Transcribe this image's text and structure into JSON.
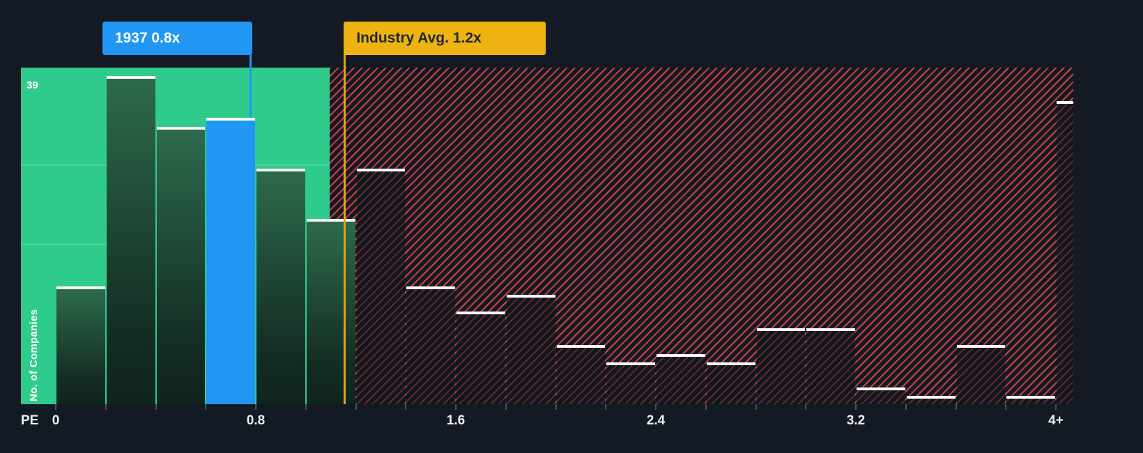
{
  "colors": {
    "background": "#131a23",
    "undervalued_zone_green": "#2ecb8c",
    "overvalued_hatch_red": "#f34949",
    "company_bar_blue": "#2196f3",
    "industry_marker_amber": "#eeb211",
    "bar_top_cap_white": "#ffffff",
    "axis_text": "#eef2f5"
  },
  "chart_data": {
    "type": "bar",
    "title": "",
    "xlabel": "PE",
    "ylabel": "No. of Companies",
    "y_axis_max_label": "39",
    "y_max": 40,
    "grid": "partial-horizontal-in-green-zone",
    "legend": "none",
    "x_tick_labels": [
      {
        "label": "0",
        "pe": 0.0
      },
      {
        "label": "0.8",
        "pe": 0.8
      },
      {
        "label": "1.6",
        "pe": 1.6
      },
      {
        "label": "2.4",
        "pe": 2.4
      },
      {
        "label": "3.2",
        "pe": 3.2
      },
      {
        "label": "4+",
        "pe": 4.0
      }
    ],
    "bin_width_pe": 0.2,
    "bars": [
      {
        "pe_from": 0.0,
        "pe_to": 0.2,
        "count": 14,
        "zone": "undervalued"
      },
      {
        "pe_from": 0.2,
        "pe_to": 0.4,
        "count": 39,
        "zone": "undervalued"
      },
      {
        "pe_from": 0.4,
        "pe_to": 0.6,
        "count": 33,
        "zone": "undervalued"
      },
      {
        "pe_from": 0.6,
        "pe_to": 0.8,
        "count": 34,
        "zone": "company"
      },
      {
        "pe_from": 0.8,
        "pe_to": 1.0,
        "count": 28,
        "zone": "undervalued"
      },
      {
        "pe_from": 1.0,
        "pe_to": 1.2,
        "count": 22,
        "zone": "undervalued"
      },
      {
        "pe_from": 1.2,
        "pe_to": 1.4,
        "count": 28,
        "zone": "overvalued"
      },
      {
        "pe_from": 1.4,
        "pe_to": 1.6,
        "count": 14,
        "zone": "overvalued"
      },
      {
        "pe_from": 1.6,
        "pe_to": 1.8,
        "count": 11,
        "zone": "overvalued"
      },
      {
        "pe_from": 1.8,
        "pe_to": 2.0,
        "count": 13,
        "zone": "overvalued"
      },
      {
        "pe_from": 2.0,
        "pe_to": 2.2,
        "count": 7,
        "zone": "overvalued"
      },
      {
        "pe_from": 2.2,
        "pe_to": 2.4,
        "count": 5,
        "zone": "overvalued"
      },
      {
        "pe_from": 2.4,
        "pe_to": 2.6,
        "count": 6,
        "zone": "overvalued"
      },
      {
        "pe_from": 2.6,
        "pe_to": 2.8,
        "count": 5,
        "zone": "overvalued"
      },
      {
        "pe_from": 2.8,
        "pe_to": 3.0,
        "count": 9,
        "zone": "overvalued"
      },
      {
        "pe_from": 3.0,
        "pe_to": 3.2,
        "count": 9,
        "zone": "overvalued"
      },
      {
        "pe_from": 3.2,
        "pe_to": 3.4,
        "count": 2,
        "zone": "overvalued"
      },
      {
        "pe_from": 3.4,
        "pe_to": 3.6,
        "count": 1,
        "zone": "overvalued"
      },
      {
        "pe_from": 3.6,
        "pe_to": 3.8,
        "count": 7,
        "zone": "overvalued"
      },
      {
        "pe_from": 3.8,
        "pe_to": 4.0,
        "count": 1,
        "zone": "overvalued"
      },
      {
        "pe_from": 4.0,
        "pe_to": 4.2,
        "count": 36,
        "zone": "overvalued"
      }
    ],
    "markers": {
      "company": {
        "label": "1937 0.8x",
        "line_pe": 0.78
      },
      "industry": {
        "label": "Industry Avg. 1.2x",
        "line_pe": 1.155
      }
    },
    "zones": {
      "undervalued_end_pe": 1.095
    }
  }
}
